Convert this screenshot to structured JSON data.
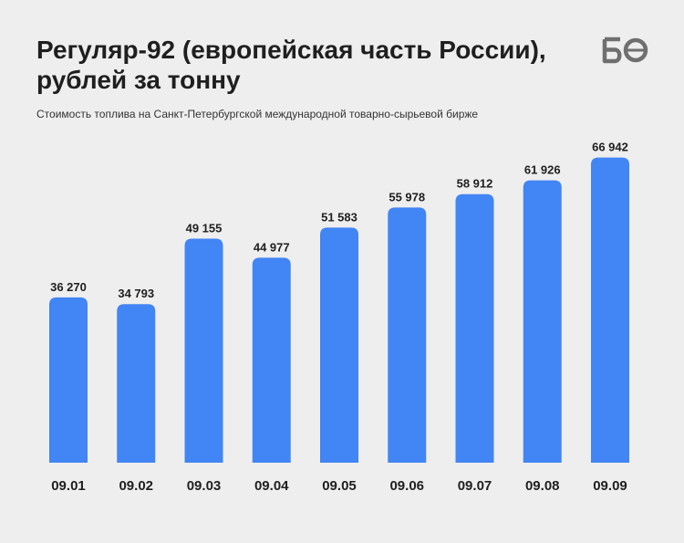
{
  "brand": {
    "logo_text": "БО",
    "logo_color": "#6f6f6f"
  },
  "chart_data": {
    "type": "bar",
    "title": "Регуляр-92 (европейская часть России), рублей за тонну",
    "subtitle": "Стоимость топлива на Санкт-Петербургской международной товарно-сырьевой бирже",
    "categories": [
      "09.01",
      "09.02",
      "09.03",
      "09.04",
      "09.05",
      "09.06",
      "09.07",
      "09.08",
      "09.09"
    ],
    "values": [
      36270,
      34793,
      49155,
      44977,
      51583,
      55978,
      58912,
      61926,
      66942
    ],
    "value_labels": [
      "36 270",
      "34 793",
      "49 155",
      "44 977",
      "51 583",
      "55 978",
      "58 912",
      "61 926",
      "66 942"
    ],
    "bar_color": "#4285f4",
    "grid": false,
    "legend": "none"
  }
}
